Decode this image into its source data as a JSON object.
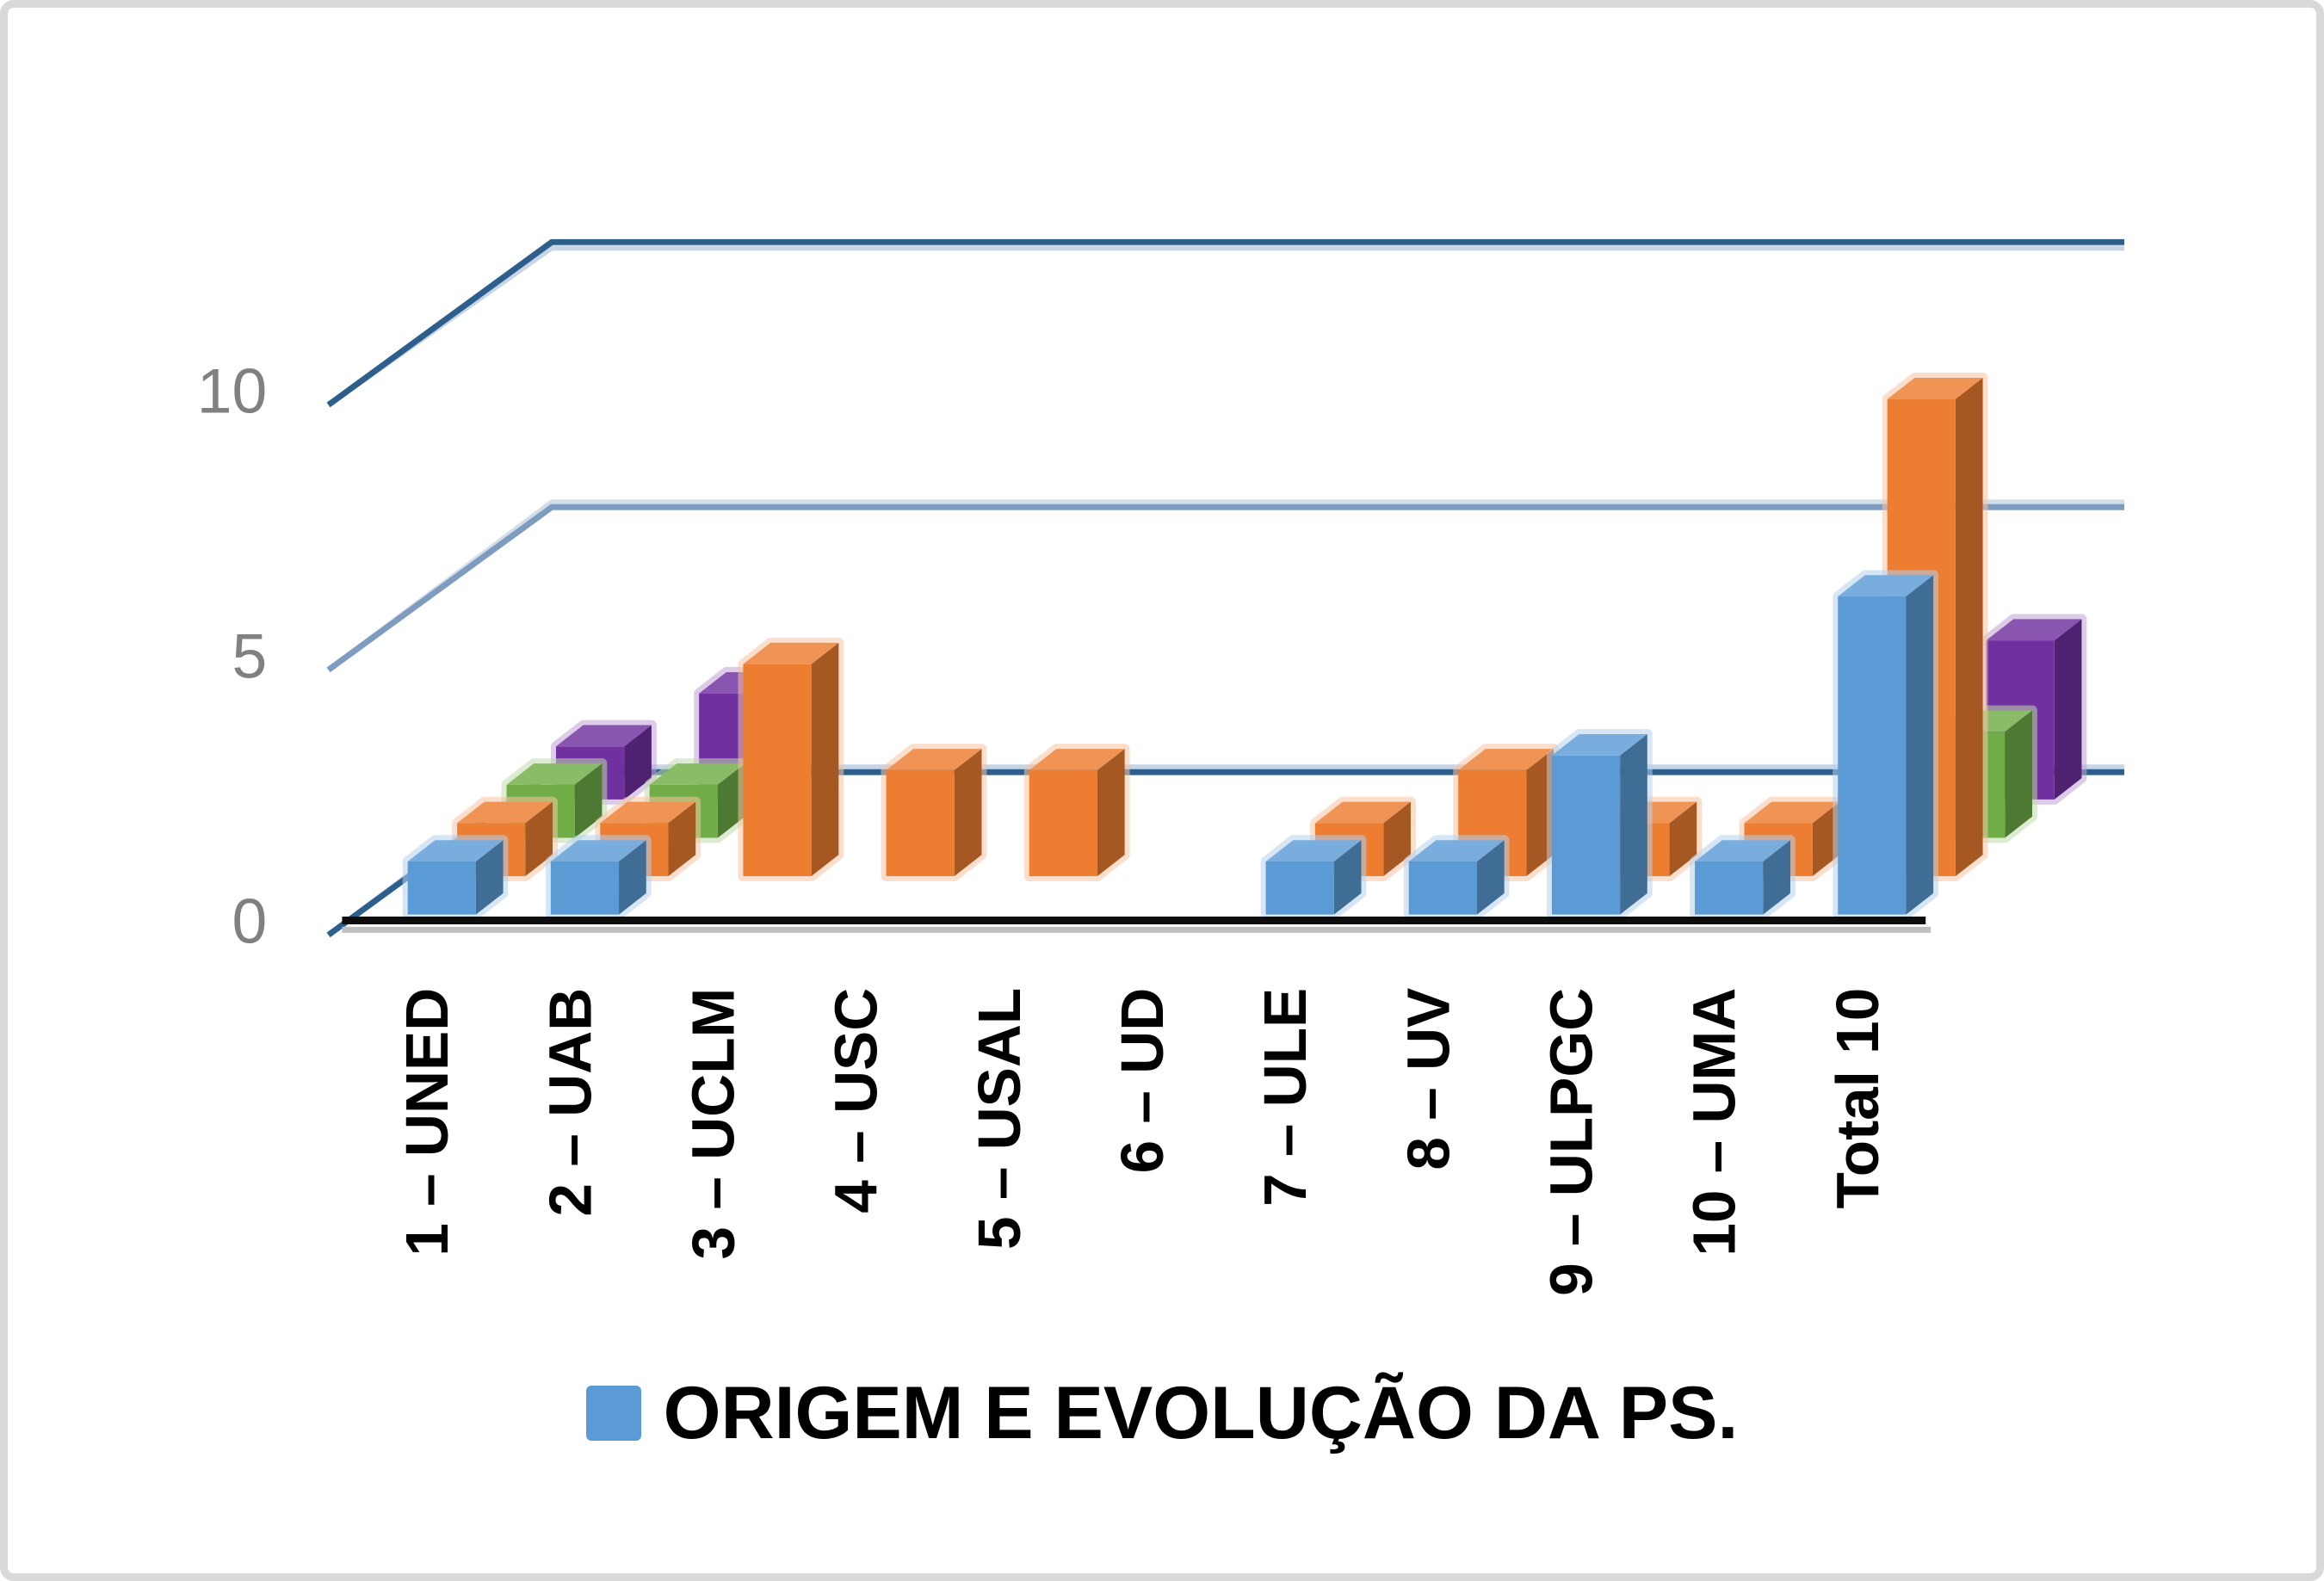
{
  "chart_data": {
    "type": "bar",
    "subtype": "3d-clustered-column",
    "title": "",
    "xlabel": "",
    "ylabel": "",
    "categories": [
      "1 – UNED",
      "2 – UAB",
      "3 – UCLM",
      "4 – USC",
      "5 – USAL",
      "6 – UD",
      "7 – ULE",
      "8 – UV",
      "9 – ULPGC",
      "10 – UMA",
      "Total 10"
    ],
    "series": [
      {
        "name": "ORIGEM E EVOLUÇÃO DA PS.",
        "color": "#5B9BD5",
        "in_legend": true,
        "values": [
          1,
          1,
          null,
          null,
          null,
          null,
          1,
          1,
          3,
          1,
          6
        ]
      },
      {
        "name": "",
        "color": "#ED7D31",
        "in_legend": false,
        "values": [
          1,
          1,
          4,
          2,
          2,
          null,
          1,
          2,
          1,
          1,
          9
        ]
      },
      {
        "name": "",
        "color": "#70AD47",
        "in_legend": false,
        "values": [
          1,
          1,
          null,
          null,
          null,
          null,
          null,
          null,
          null,
          null,
          2
        ]
      },
      {
        "name": "",
        "color": "#7030A0",
        "in_legend": false,
        "values": [
          1,
          2,
          null,
          null,
          null,
          null,
          null,
          null,
          null,
          null,
          3
        ]
      }
    ],
    "y_axis": {
      "min": 0,
      "max": 10,
      "ticks": [
        0,
        5,
        10
      ],
      "tick_labels": [
        "0",
        "5",
        "10"
      ],
      "tick_color": "#808080"
    },
    "grid": true,
    "legend": {
      "position": "bottom",
      "items": [
        {
          "label": "ORIGEM E EVOLUÇÃO DA PS.",
          "color": "#5B9BD5"
        }
      ]
    }
  },
  "colors": {
    "background": "#FFFFFF",
    "frame_border": "#D9D9D9",
    "grid_dark": "#2E5F8C",
    "grid_mid": "#7E9CC0",
    "grid_light": "#C7D5E6",
    "grid_mid_light": "#D3DDEA",
    "axis_line": "#0D0D0D",
    "axis_shadow": "#BFBFBF",
    "category_label": "#000000"
  }
}
